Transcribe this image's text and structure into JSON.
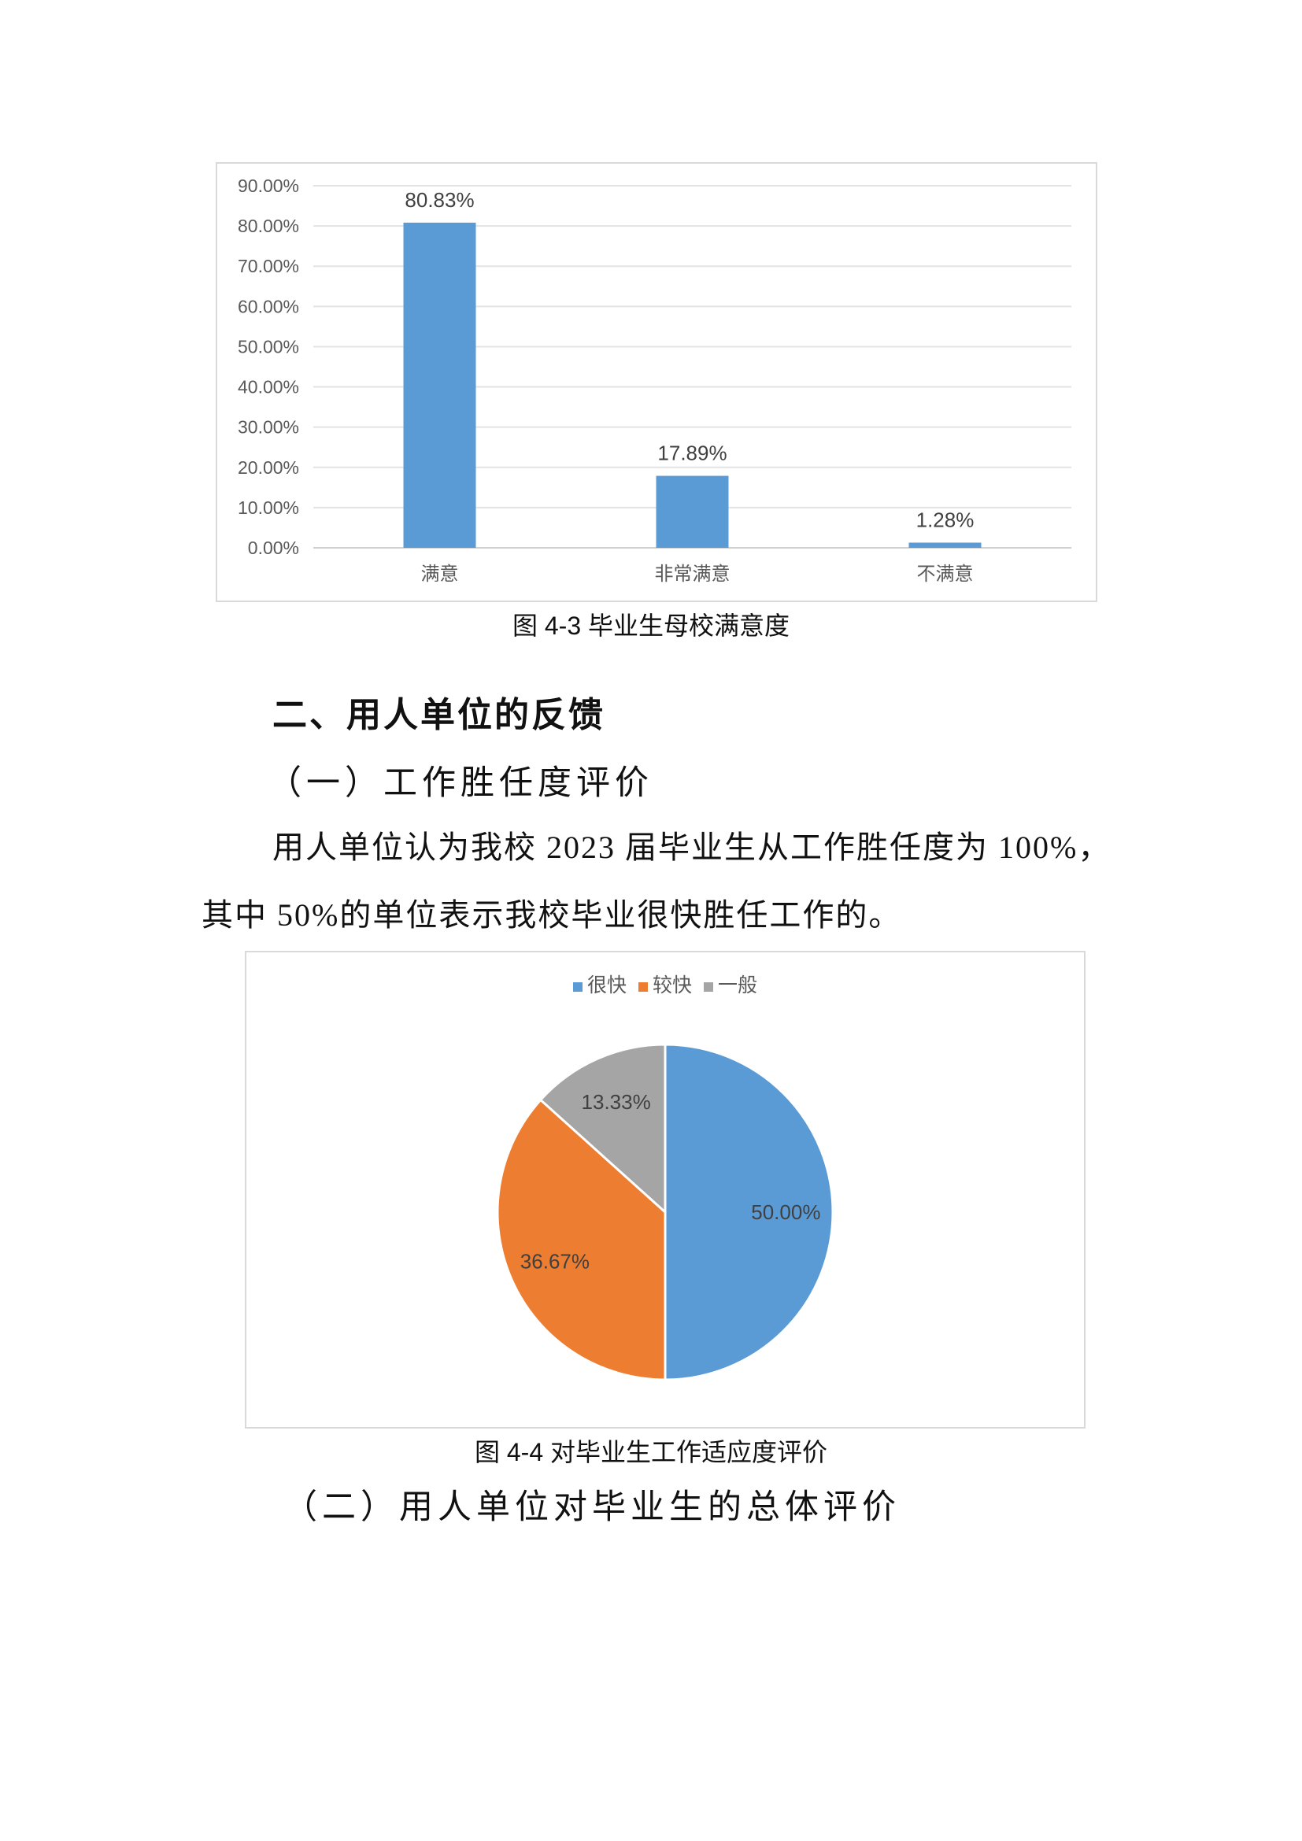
{
  "figure1": {
    "caption": "图 4-3  毕业生母校满意度",
    "chart_data": {
      "type": "bar",
      "categories": [
        "满意",
        "非常满意",
        "不满意"
      ],
      "values": [
        80.83,
        17.89,
        1.28
      ],
      "data_labels": [
        "80.83%",
        "17.89%",
        "1.28%"
      ],
      "ylim": [
        0,
        90
      ],
      "yticks": [
        "0.00%",
        "10.00%",
        "20.00%",
        "30.00%",
        "40.00%",
        "50.00%",
        "60.00%",
        "70.00%",
        "80.00%",
        "90.00%"
      ],
      "grid": true,
      "color": "#5B9BD5"
    }
  },
  "section": {
    "heading": "二、用人单位的反馈",
    "subheading1": "（一）工作胜任度评价",
    "paragraph_line1": "用人单位认为我校 2023 届毕业生从工作胜任度为 100%，",
    "paragraph_line2": "其中 50%的单位表示我校毕业很快胜任工作的。",
    "subheading2": "（二）用人单位对毕业生的总体评价"
  },
  "figure2": {
    "caption": "图  4-4  对毕业生工作适应度评价",
    "chart_data": {
      "type": "pie",
      "categories": [
        "很快",
        "较快",
        "一般"
      ],
      "values": [
        50.0,
        36.67,
        13.33
      ],
      "data_labels": [
        "50.00%",
        "36.67%",
        "13.33%"
      ],
      "colors": [
        "#5B9BD5",
        "#ED7D31",
        "#A5A5A5"
      ],
      "legend": "top"
    }
  }
}
